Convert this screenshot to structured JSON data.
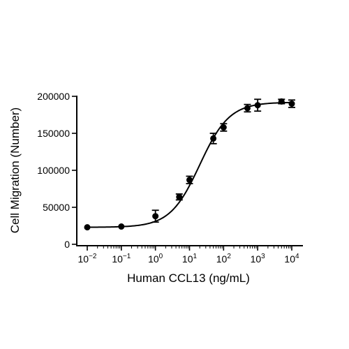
{
  "chart_data": {
    "type": "scatter",
    "title": "",
    "xlabel": "Human CCL13 (ng/mL)",
    "ylabel": "Cell Migration (Number)",
    "x_scale": "log10",
    "xlim": [
      0.01,
      10000
    ],
    "ylim": [
      0,
      200000
    ],
    "grid": false,
    "legend": "none",
    "marker_color": "#000000",
    "x_ticks": [
      0.01,
      0.1,
      1,
      10,
      100,
      1000,
      10000
    ],
    "x_tick_labels": [
      {
        "base": "10",
        "exp": "-2"
      },
      {
        "base": "10",
        "exp": "-1"
      },
      {
        "base": "10",
        "exp": "0"
      },
      {
        "base": "10",
        "exp": "1"
      },
      {
        "base": "10",
        "exp": "2"
      },
      {
        "base": "10",
        "exp": "3"
      },
      {
        "base": "10",
        "exp": "4"
      }
    ],
    "y_ticks": [
      0,
      50000,
      100000,
      150000,
      200000
    ],
    "y_tick_labels": [
      "0",
      "50000",
      "100000",
      "150000",
      "200000"
    ],
    "series": [
      {
        "points": [
          {
            "x": 0.01,
            "y": 23000,
            "err": 0
          },
          {
            "x": 0.1,
            "y": 24000,
            "err": 0
          },
          {
            "x": 1,
            "y": 38000,
            "err": 8000
          },
          {
            "x": 5,
            "y": 64000,
            "err": 4000
          },
          {
            "x": 10,
            "y": 87000,
            "err": 5000
          },
          {
            "x": 50,
            "y": 143000,
            "err": 7000
          },
          {
            "x": 100,
            "y": 158000,
            "err": 5000
          },
          {
            "x": 500,
            "y": 184000,
            "err": 5000
          },
          {
            "x": 1000,
            "y": 188000,
            "err": 8000
          },
          {
            "x": 5000,
            "y": 193000,
            "err": 3000
          },
          {
            "x": 10000,
            "y": 190000,
            "err": 5000
          }
        ]
      }
    ],
    "fit": {
      "type": "four-parameter-logistic",
      "bottom": 23000,
      "top": 192000,
      "ec50": 20,
      "hill": 1
    }
  }
}
